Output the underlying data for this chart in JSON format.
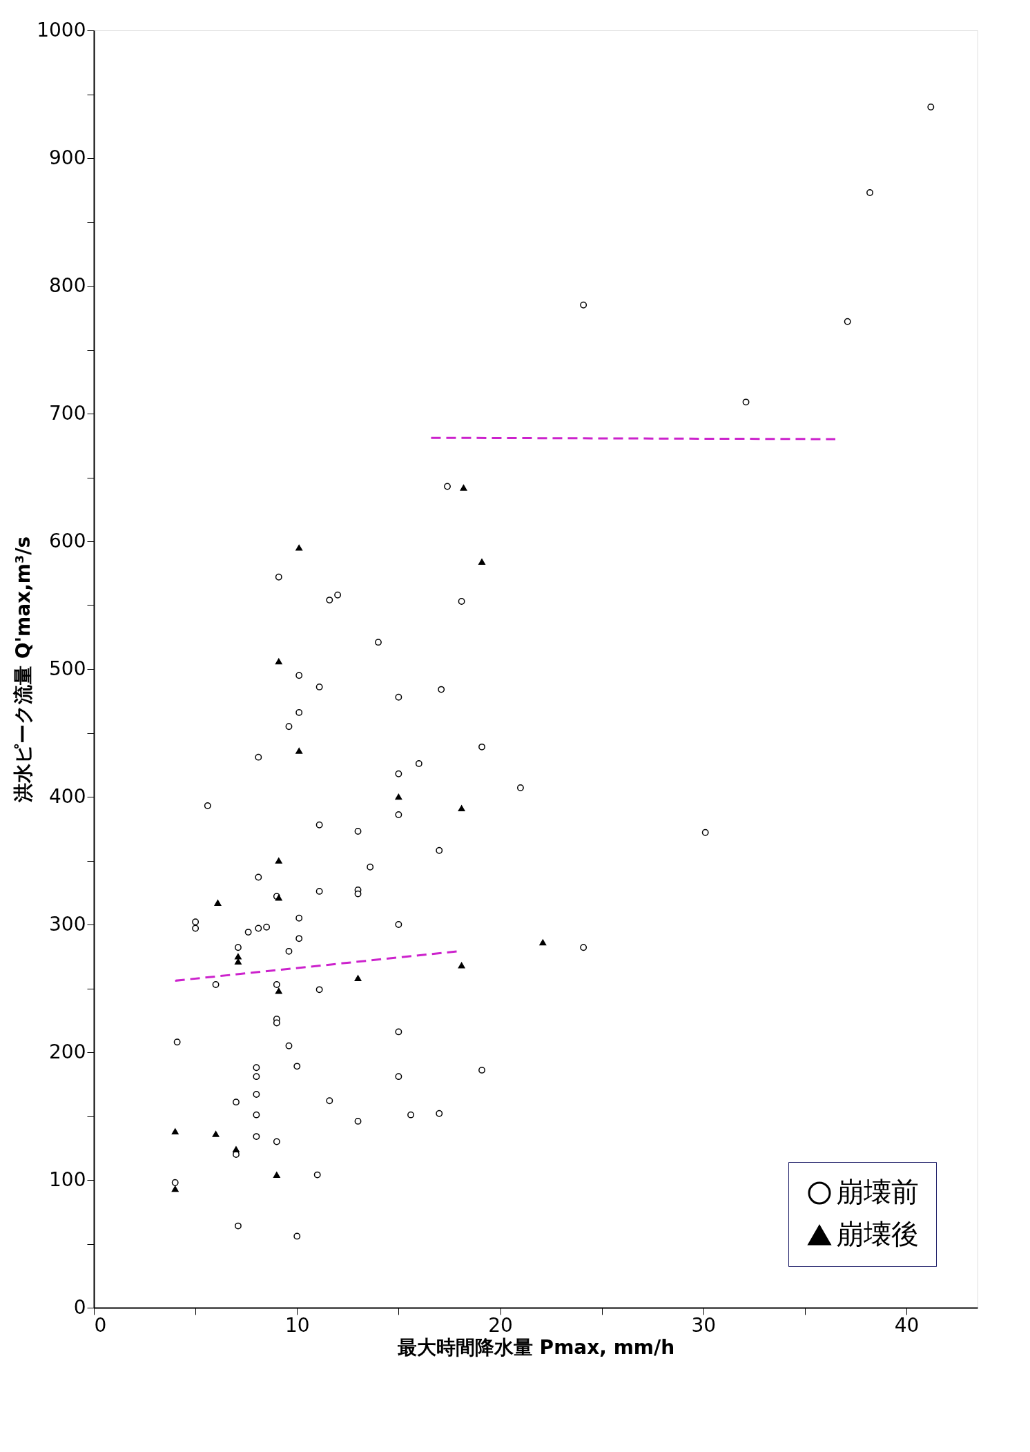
{
  "chart_data": {
    "type": "scatter",
    "xlabel": "最大時間降水量 Pmax, mm/h",
    "ylabel": "洪水ピーク流量 Q'max,m³/s",
    "xlim": [
      0,
      43.5
    ],
    "ylim": [
      0,
      1000
    ],
    "xticks": [
      0,
      {
        "value": 5,
        "label": null
      },
      10,
      {
        "value": 15,
        "label": null
      },
      20,
      {
        "value": 25,
        "label": null
      },
      30,
      {
        "value": 35,
        "label": null
      },
      40
    ],
    "yticks": [
      0,
      {
        "value": 50,
        "label": null
      },
      100,
      {
        "value": 150,
        "label": null
      },
      200,
      {
        "value": 250,
        "label": null
      },
      300,
      {
        "value": 350,
        "label": null
      },
      400,
      {
        "value": 450,
        "label": null
      },
      500,
      {
        "value": 550,
        "label": null
      },
      600,
      {
        "value": 650,
        "label": null
      },
      700,
      {
        "value": 750,
        "label": null
      },
      800,
      {
        "value": 850,
        "label": null
      },
      900,
      {
        "value": 950,
        "label": null
      },
      1000
    ],
    "grid": false,
    "legend": "bottom right",
    "series": [
      {
        "name": "崩壊前",
        "marker": "circle",
        "color": "#000000",
        "x": [
          41.2,
          38.2,
          37.1,
          32.1,
          24.1,
          30.1,
          24.1,
          21.0,
          19.1,
          19.1,
          17.4,
          18.1,
          17.1,
          17.0,
          17.0,
          16.0,
          15.6,
          15.0,
          15.0,
          15.0,
          15.0,
          15.0,
          15.0,
          14.0,
          13.6,
          13.0,
          13.0,
          13.0,
          13.0,
          12.0,
          11.6,
          11.1,
          11.1,
          11.1,
          11.1,
          11.6,
          11.0,
          9.1,
          10.1,
          10.1,
          9.6,
          8.1,
          10.1,
          10.1,
          9.6,
          9.6,
          10.0,
          10.0,
          8.1,
          9.0,
          8.5,
          8.1,
          7.6,
          9.0,
          9.0,
          9.0,
          8.0,
          8.0,
          8.0,
          8.0,
          8.0,
          9.0,
          7.0,
          7.1,
          7.0,
          7.1,
          6.0,
          5.6,
          5.0,
          5.0,
          4.1,
          4.0
        ],
        "values": [
          940,
          873,
          772,
          709,
          785,
          372,
          282,
          407,
          439,
          186,
          643,
          553,
          484,
          358,
          152,
          426,
          151,
          478,
          418,
          386,
          300,
          216,
          181,
          521,
          345,
          373,
          327,
          324,
          146,
          558,
          554,
          486,
          378,
          326,
          249,
          162,
          104,
          572,
          495,
          466,
          455,
          431,
          305,
          289,
          279,
          205,
          189,
          56,
          337,
          322,
          298,
          297,
          294,
          253,
          226,
          223,
          188,
          181,
          167,
          151,
          134,
          130,
          161,
          282,
          120,
          64,
          253,
          393,
          302,
          297,
          208,
          98
        ]
      },
      {
        "name": "崩壊後",
        "marker": "triangle",
        "color": "#000000",
        "x": [
          18.2,
          19.1,
          18.1,
          18.1,
          22.1,
          15.0,
          13.0,
          10.1,
          10.1,
          9.1,
          9.1,
          9.1,
          9.1,
          9.0,
          7.1,
          7.1,
          7.0,
          6.1,
          6.0,
          4.0,
          4.0
        ],
        "values": [
          642,
          584,
          391,
          268,
          286,
          400,
          258,
          595,
          436,
          506,
          350,
          321,
          248,
          104,
          275,
          271,
          124,
          317,
          136,
          138,
          93
        ]
      },
      {
        "type": "line",
        "line_style": "dashed",
        "color": "#cc22cc",
        "x": [
          4.0,
          17.9
        ],
        "values": [
          256,
          279
        ]
      },
      {
        "type": "line",
        "line_style": "dashed",
        "color": "#cc22cc",
        "x": [
          16.6,
          36.5
        ],
        "values": [
          681,
          680
        ]
      }
    ]
  }
}
